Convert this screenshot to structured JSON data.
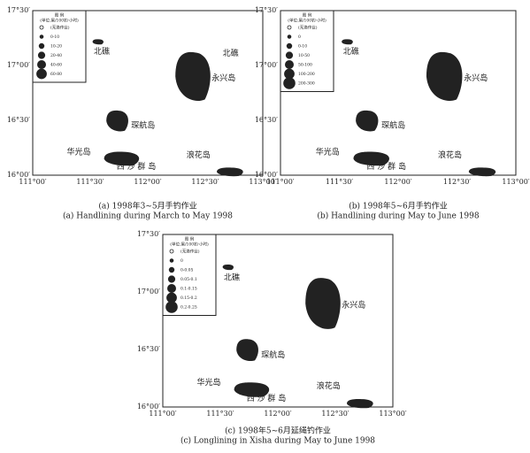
{
  "panels": [
    {
      "legend": {
        "title": "图 例",
        "unit": "(单位:尾/100钓·小时)",
        "items": [
          "(无渔作业)",
          "0-10",
          "10-20",
          "20-40",
          "40-60",
          "60-80"
        ]
      },
      "islands": [
        "北礁",
        "北礁",
        "永兴岛",
        "琛航岛",
        "华光岛",
        "西 沙 群 岛",
        "浪花岛"
      ],
      "yticks": [
        "17°30′",
        "17°00′",
        "16°30′",
        "16°00′"
      ],
      "xticks": [
        "111°00′",
        "111°30′",
        "112°00′",
        "112°30′",
        "113°00′"
      ],
      "caption_cn": "(a)  1998年3~5月手钓作业",
      "caption_en": "(a)  Handlining during March to May 1998"
    },
    {
      "legend": {
        "title": "图 例",
        "unit": "(单位:尾/100钓·小时)",
        "items": [
          "(无渔作业)",
          "0",
          "0-10",
          "10-50",
          "50-100",
          "100-200",
          "200-300"
        ]
      },
      "islands": [
        "北礁",
        "永兴岛",
        "琛航岛",
        "华光岛",
        "西 沙 群 岛",
        "浪花岛"
      ],
      "yticks": [
        "17°30′",
        "17°00′",
        "16°30′",
        "16°00′"
      ],
      "xticks": [
        "111°00′",
        "111°30′",
        "112°00′",
        "112°30′",
        "113°00′"
      ],
      "caption_cn": "(b)  1998年5~6月手钓作业",
      "caption_en": "(b)  Handlining during May to June 1998"
    },
    {
      "legend": {
        "title": "图 例",
        "unit": "(单位:尾/100钓·小时)",
        "items": [
          "(无渔作业)",
          "0",
          "0-0.05",
          "0.05-0.1",
          "0.1-0.15",
          "0.15-0.2",
          "0.2-0.25"
        ]
      },
      "islands": [
        "北礁",
        "永兴岛",
        "琛航岛",
        "华光岛",
        "西 沙 群 岛",
        "浪花岛"
      ],
      "yticks": [
        "17°30′",
        "17°00′",
        "16°30′",
        "16°00′"
      ],
      "xticks": [
        "111°00′",
        "111°30′",
        "112°00′",
        "112°30′",
        "113°00′"
      ],
      "caption_cn": "(c)  1998年5~6月延绳钓作业",
      "caption_en": "(c)  Longlining in Xisha during May to  June 1998"
    }
  ]
}
